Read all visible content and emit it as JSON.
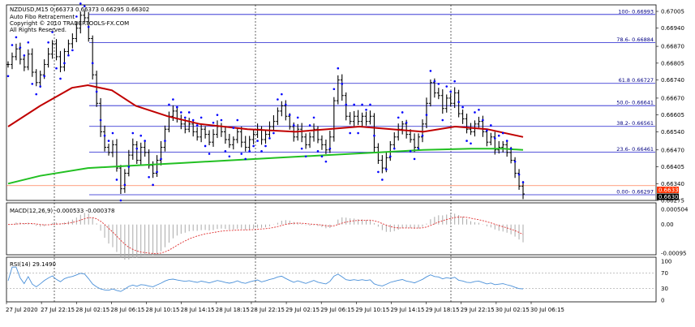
{
  "header": {
    "symbol_line": "NZDUSD,M15  0.66373 0.66373 0.66295 0.66302",
    "indicator": "Auto Fibo Retracement",
    "copyright": "Copyright © 2010 TRADERTOOLS-FX.COM",
    "rights": "All Rights Reserved."
  },
  "price_badges": {
    "red": "0.66332",
    "current": "0.66302"
  },
  "chart_data": [
    {
      "type": "line",
      "name": "price",
      "ylim": [
        0.66275,
        0.67005
      ],
      "ytick_labels": [
        "0.67005",
        "0.66940",
        "0.66870",
        "0.66805",
        "0.66740",
        "0.66670",
        "0.66605",
        "0.66540",
        "0.66470",
        "0.66405",
        "0.66340",
        "0.66275"
      ],
      "xtick_labels": [
        "27 Jul 2020",
        "27 Jul 22:15",
        "28 Jul 02:15",
        "28 Jul 06:15",
        "28 Jul 10:15",
        "28 Jul 14:15",
        "28 Jul 18:15",
        "28 Jul 22:15",
        "29 Jul 02:15",
        "29 Jul 06:15",
        "29 Jul 10:15",
        "29 Jul 14:15",
        "29 Jul 18:15",
        "29 Jul 22:15",
        "30 Jul 02:15",
        "30 Jul 06:15"
      ],
      "fibo_levels": [
        {
          "label": "100- 0.66993",
          "value": 0.66993
        },
        {
          "label": "78.6- 0.66884",
          "value": 0.66884
        },
        {
          "label": "61.8 0.66727",
          "value": 0.66727
        },
        {
          "label": "50.0- 0.66641",
          "value": 0.66641
        },
        {
          "label": "38.2- 0.66561",
          "value": 0.66561
        },
        {
          "label": "23.6- 0.66461",
          "value": 0.66461
        },
        {
          "label": "0.00- 0.66297",
          "value": 0.66297
        }
      ],
      "close": [
        0.668,
        0.6683,
        0.6686,
        0.6682,
        0.6679,
        0.6684,
        0.6677,
        0.6673,
        0.6676,
        0.668,
        0.6684,
        0.6688,
        0.6683,
        0.6679,
        0.6685,
        0.6688,
        0.669,
        0.6694,
        0.6699,
        0.6698,
        0.669,
        0.6676,
        0.6665,
        0.6654,
        0.6648,
        0.6646,
        0.6649,
        0.664,
        0.6632,
        0.6638,
        0.6645,
        0.6649,
        0.6643,
        0.6648,
        0.6646,
        0.6641,
        0.6638,
        0.6643,
        0.6648,
        0.6655,
        0.666,
        0.6662,
        0.6659,
        0.6657,
        0.6655,
        0.6657,
        0.6654,
        0.6652,
        0.6655,
        0.6653,
        0.665,
        0.6653,
        0.6656,
        0.6654,
        0.6651,
        0.6649,
        0.6651,
        0.6654,
        0.665,
        0.6648,
        0.6651,
        0.6653,
        0.6655,
        0.6651,
        0.6653,
        0.6656,
        0.6658,
        0.6662,
        0.6664,
        0.666,
        0.6656,
        0.6652,
        0.6655,
        0.6652,
        0.6649,
        0.6652,
        0.6655,
        0.6651,
        0.6649,
        0.6647,
        0.6652,
        0.6666,
        0.6674,
        0.6668,
        0.666,
        0.6658,
        0.666,
        0.6658,
        0.666,
        0.6658,
        0.666,
        0.6648,
        0.6643,
        0.664,
        0.6644,
        0.6649,
        0.6652,
        0.6655,
        0.6657,
        0.6653,
        0.6651,
        0.6648,
        0.6652,
        0.6657,
        0.6665,
        0.6673,
        0.6669,
        0.6668,
        0.6663,
        0.6667,
        0.6665,
        0.6669,
        0.6661,
        0.6659,
        0.6655,
        0.6654,
        0.6657,
        0.6658,
        0.6654,
        0.665,
        0.6652,
        0.6647,
        0.6648,
        0.6649,
        0.6646,
        0.6643,
        0.6638,
        0.6633,
        0.663
      ],
      "ma_red": [
        [
          0,
          0.6656
        ],
        [
          40,
          0.6664
        ],
        [
          80,
          0.6671
        ],
        [
          100,
          0.6672
        ],
        [
          130,
          0.667
        ],
        [
          160,
          0.6664
        ],
        [
          200,
          0.666
        ],
        [
          240,
          0.6657
        ],
        [
          300,
          0.6655
        ],
        [
          360,
          0.6654
        ],
        [
          400,
          0.6655
        ],
        [
          440,
          0.6656
        ],
        [
          480,
          0.6655
        ],
        [
          520,
          0.6654
        ],
        [
          560,
          0.6656
        ],
        [
          600,
          0.6655
        ],
        [
          645,
          0.6652
        ]
      ],
      "ma_green": [
        [
          0,
          0.6634
        ],
        [
          40,
          0.6637
        ],
        [
          100,
          0.664
        ],
        [
          160,
          0.6641
        ],
        [
          220,
          0.6642
        ],
        [
          280,
          0.6643
        ],
        [
          340,
          0.6644
        ],
        [
          400,
          0.6645
        ],
        [
          460,
          0.6646
        ],
        [
          520,
          0.6647
        ],
        [
          580,
          0.66475
        ],
        [
          620,
          0.66475
        ],
        [
          645,
          0.6647
        ]
      ]
    },
    {
      "type": "line",
      "name": "macd",
      "label": "MACD(12,26,9) -0.000533 -0.000378",
      "ylim": [
        -0.00095,
        0.000504
      ],
      "ytick_labels": [
        "0.000504",
        "0.00",
        "-0.00095"
      ]
    },
    {
      "type": "line",
      "name": "rsi",
      "label": "RSI(14) 29.1490",
      "ylim": [
        0,
        100
      ],
      "ytick_labels": [
        "100",
        "70",
        "30",
        "0"
      ]
    }
  ],
  "colors": {
    "candle": "#000000",
    "fibo": "#1f1fcf",
    "ma_red": "#c00000",
    "ma_green": "#22c022",
    "sar": "#0000ff",
    "macd_signal": "#e03030",
    "rsi": "#4a90d9",
    "badge_red": "#ff3300",
    "badge_current": "#000000"
  }
}
